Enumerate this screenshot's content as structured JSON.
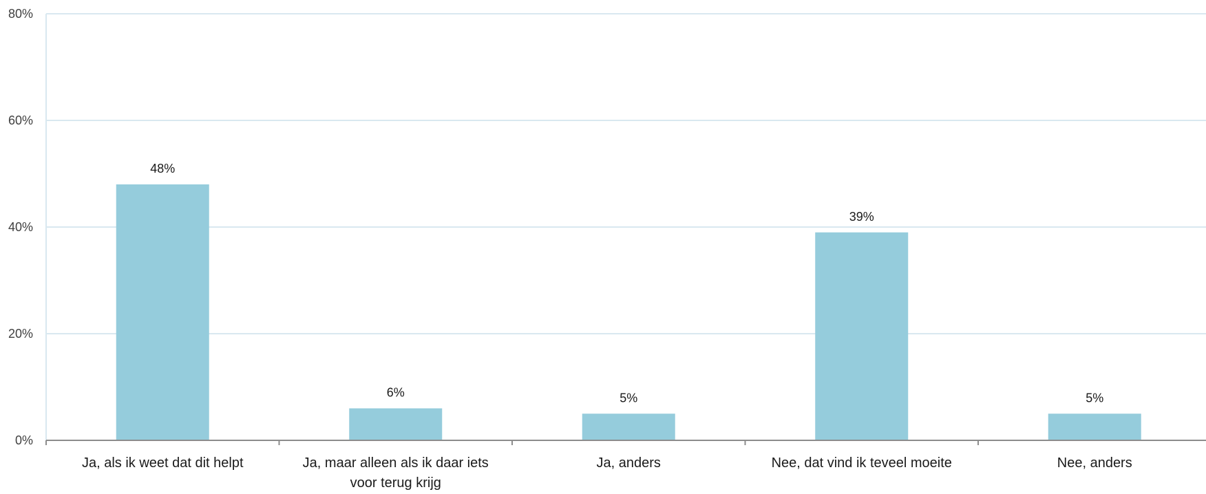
{
  "chart_data": {
    "type": "bar",
    "title": "",
    "xlabel": "",
    "ylabel": "",
    "categories": [
      "Ja, als ik weet dat dit helpt",
      "Ja, maar alleen als ik daar iets voor terug krijg",
      "Ja, anders",
      "Nee, dat vind ik teveel moeite",
      "Nee, anders"
    ],
    "category_lines": [
      [
        "Ja, als ik weet dat dit helpt"
      ],
      [
        "Ja, maar alleen als ik daar iets",
        "voor terug krijg"
      ],
      [
        "Ja, anders"
      ],
      [
        "Nee, dat vind ik teveel moeite"
      ],
      [
        "Nee, anders"
      ]
    ],
    "values": [
      48,
      6,
      5,
      39,
      5
    ],
    "data_labels": [
      "48%",
      "6%",
      "5%",
      "39%",
      "5%"
    ],
    "ylim": [
      0,
      80
    ],
    "yticks": [
      0,
      20,
      40,
      60,
      80
    ],
    "ytick_labels": [
      "0%",
      "20%",
      "40%",
      "60%",
      "80%"
    ],
    "grid": true,
    "legend": "none",
    "colors": {
      "bar": "#95CCDC",
      "grid": "#D9E8F0",
      "axis": "#8C8C8C",
      "text": "#1A1A1A",
      "tick_text": "#404040"
    }
  }
}
